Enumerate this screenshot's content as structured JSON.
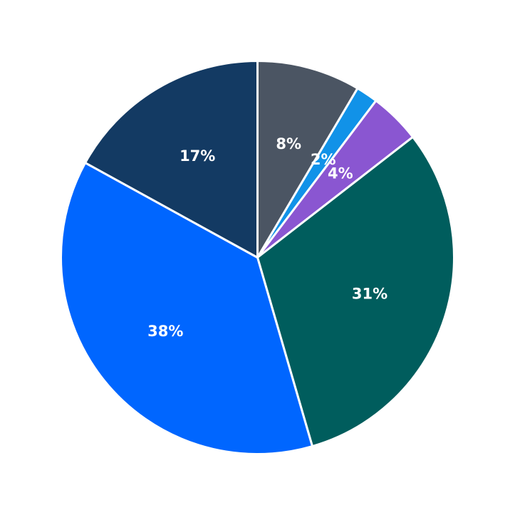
{
  "chart_data": {
    "type": "pie",
    "start_angle_deg": 90,
    "direction": "clockwise",
    "slices": [
      {
        "value": 8.5,
        "label": "8%",
        "color": "#4b5563"
      },
      {
        "value": 1.8,
        "label": "2%",
        "color": "#1192e8"
      },
      {
        "value": 4.2,
        "label": "4%",
        "color": "#8a56d1"
      },
      {
        "value": 31.0,
        "label": "31%",
        "color": "#005d5d"
      },
      {
        "value": 37.5,
        "label": "38%",
        "color": "#0066ff"
      },
      {
        "value": 17.0,
        "label": "17%",
        "color": "#133a63"
      }
    ]
  }
}
